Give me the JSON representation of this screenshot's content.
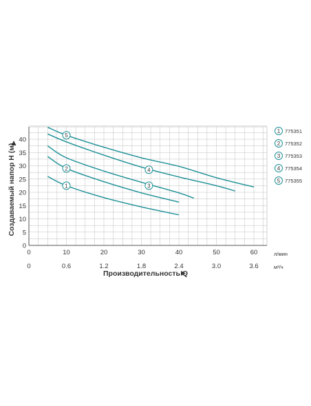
{
  "chart_data": {
    "type": "line",
    "ylabel": "Создаваемый напор H (м)",
    "xlabel": "Производительность Q",
    "x_unit": "л/мин",
    "x2_unit": "м³/ч",
    "xlim": [
      0,
      62
    ],
    "ylim": [
      0,
      45
    ],
    "x_ticks": [
      "0",
      "10",
      "20",
      "30",
      "40",
      "50",
      "60"
    ],
    "x2_ticks": [
      "0",
      "0.6",
      "1.2",
      "1.8",
      "2.4",
      "3.0",
      "3.6"
    ],
    "y_ticks": [
      "0",
      "5",
      "10",
      "15",
      "20",
      "25",
      "30",
      "35",
      "40"
    ],
    "grid": true,
    "legend_position": "right",
    "series": [
      {
        "name": "775351",
        "marker": "1",
        "x": [
          5,
          10,
          20,
          30,
          40
        ],
        "y": [
          26,
          22.5,
          18,
          14.5,
          11.5
        ]
      },
      {
        "name": "775352",
        "marker": "2",
        "x": [
          5,
          10,
          20,
          30,
          40
        ],
        "y": [
          33.5,
          29,
          24,
          19.8,
          16.3
        ]
      },
      {
        "name": "775353",
        "marker": "3",
        "x": [
          5,
          10,
          20,
          30,
          40,
          44
        ],
        "y": [
          37.5,
          33,
          28,
          23.8,
          19.8,
          17.8
        ]
      },
      {
        "name": "775354",
        "marker": "4",
        "x": [
          5,
          10,
          20,
          30,
          40,
          50,
          55
        ],
        "y": [
          42,
          39,
          34,
          29.5,
          25.8,
          22.5,
          20.5
        ]
      },
      {
        "name": "775355",
        "marker": "5",
        "x": [
          5,
          10,
          20,
          30,
          40,
          50,
          60
        ],
        "y": [
          44.5,
          41.5,
          37,
          33,
          29.8,
          25.5,
          22
        ]
      }
    ],
    "curve_markers": [
      {
        "marker": "1",
        "x": 10,
        "y": 22.5
      },
      {
        "marker": "2",
        "x": 10,
        "y": 29
      },
      {
        "marker": "3",
        "x": 32,
        "y": 22.5
      },
      {
        "marker": "4",
        "x": 32,
        "y": 28.5
      },
      {
        "marker": "5",
        "x": 10,
        "y": 41.5
      }
    ]
  },
  "colors": {
    "curve": "#1a8f96",
    "grid": "#bfbfbf",
    "axis": "#555555",
    "text": "#333333"
  }
}
